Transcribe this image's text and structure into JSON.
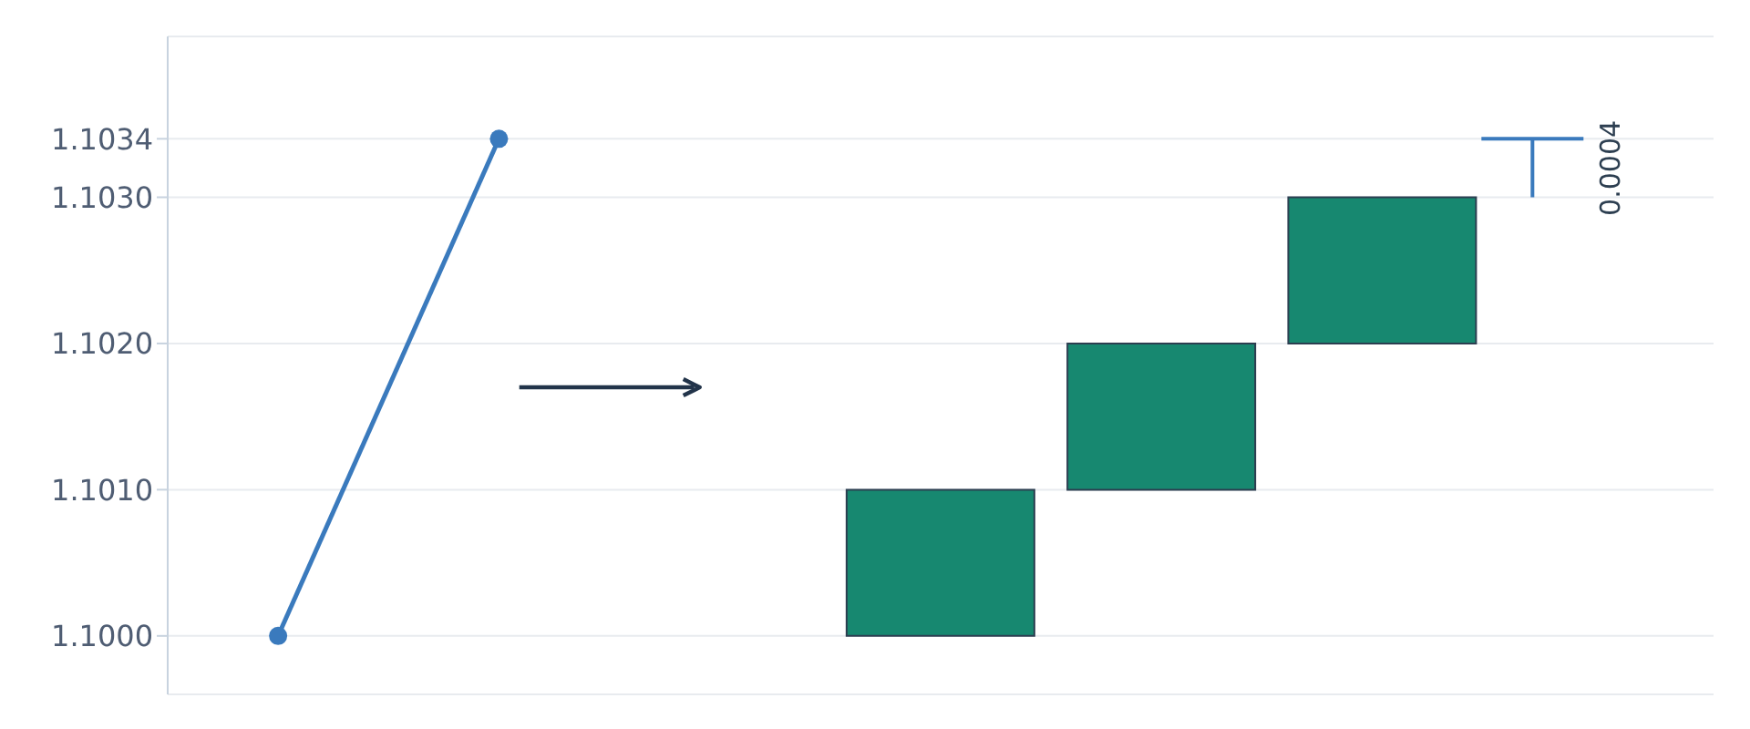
{
  "chart_data": {
    "type": "bar",
    "categories": [
      null,
      null,
      null,
      null,
      null,
      null,
      null
    ],
    "series": [
      {
        "type": "line",
        "color": "#3a7abd",
        "values": [
          1.1,
          1.1034,
          null,
          null,
          null,
          null,
          null
        ]
      },
      {
        "color": "#178870",
        "base": [
          null,
          null,
          null,
          1.1,
          1.101,
          1.102,
          null
        ],
        "values": [
          null,
          null,
          null,
          0.001,
          0.001,
          0.001,
          null
        ]
      }
    ],
    "ylim": [
      1.0996,
      1.1041
    ],
    "yticks": [
      {
        "value": 1.1,
        "label": "1.1000"
      },
      {
        "value": 1.101,
        "label": "1.1010"
      },
      {
        "value": 1.102,
        "label": "1.1020"
      },
      {
        "value": 1.103,
        "label": "1.1030"
      },
      {
        "value": 1.1034,
        "label": "1.1034"
      }
    ],
    "grid": "y",
    "marker": "circle",
    "tick_labels": "y",
    "annotations": [
      "0.0004"
    ]
  }
}
